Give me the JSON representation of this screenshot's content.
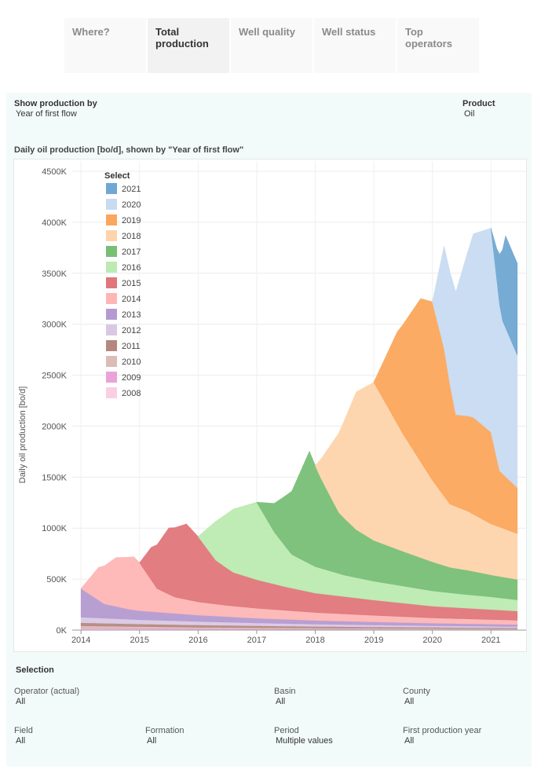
{
  "tabs": [
    {
      "label": "Where?",
      "active": false
    },
    {
      "label": "Total production",
      "active": true
    },
    {
      "label": "Well quality",
      "active": false
    },
    {
      "label": "Well status",
      "active": false
    },
    {
      "label": "Top operators",
      "active": false
    }
  ],
  "controls": {
    "show_by_label": "Show production by",
    "show_by_value": "Year of first flow",
    "product_label": "Product",
    "product_value": "Oil"
  },
  "chart_title": "Daily oil production [bo/d], shown by \"Year of first flow\"",
  "chart_data": {
    "type": "area",
    "stacked": true,
    "ylabel": "Daily oil production [bo/d]",
    "ylim": [
      0,
      4600000
    ],
    "xlim": [
      2013.85,
      2021.6
    ],
    "yticks": [
      {
        "value": 0,
        "label": "0K"
      },
      {
        "value": 500000,
        "label": "500K"
      },
      {
        "value": 1000000,
        "label": "1000K"
      },
      {
        "value": 1500000,
        "label": "1500K"
      },
      {
        "value": 2000000,
        "label": "2000K"
      },
      {
        "value": 2500000,
        "label": "2500K"
      },
      {
        "value": 3000000,
        "label": "3000K"
      },
      {
        "value": 3500000,
        "label": "3500K"
      },
      {
        "value": 4000000,
        "label": "4000K"
      },
      {
        "value": 4500000,
        "label": "4500K"
      }
    ],
    "xticks": [
      {
        "value": 2014,
        "label": "2014"
      },
      {
        "value": 2015,
        "label": "2015"
      },
      {
        "value": 2016,
        "label": "2016"
      },
      {
        "value": 2017,
        "label": "2017"
      },
      {
        "value": 2018,
        "label": "2018"
      },
      {
        "value": 2019,
        "label": "2019"
      },
      {
        "value": 2020,
        "label": "2020"
      },
      {
        "value": 2021,
        "label": "2021"
      }
    ],
    "legend": {
      "title": "Select",
      "position": "top-left"
    },
    "series": [
      {
        "name": "2008",
        "color": "#fbcfe2",
        "points": [
          [
            2014,
            12000
          ],
          [
            2016,
            8000
          ],
          [
            2018,
            6000
          ],
          [
            2020,
            5000
          ],
          [
            2021.45,
            4000
          ]
        ]
      },
      {
        "name": "2009",
        "color": "#eaa3d9",
        "points": [
          [
            2014,
            12000
          ],
          [
            2016,
            8000
          ],
          [
            2018,
            6000
          ],
          [
            2020,
            5000
          ],
          [
            2021.45,
            4000
          ]
        ]
      },
      {
        "name": "2010",
        "color": "#dcbcb6",
        "points": [
          [
            2014,
            18000
          ],
          [
            2016,
            12000
          ],
          [
            2018,
            9000
          ],
          [
            2020,
            7000
          ],
          [
            2021.45,
            6000
          ]
        ]
      },
      {
        "name": "2011",
        "color": "#b4887f",
        "points": [
          [
            2014,
            30000
          ],
          [
            2015,
            25000
          ],
          [
            2016,
            22000
          ],
          [
            2017,
            18000
          ],
          [
            2018,
            15000
          ],
          [
            2019,
            12000
          ],
          [
            2020,
            10000
          ],
          [
            2021.45,
            8000
          ]
        ]
      },
      {
        "name": "2012",
        "color": "#d9c8e4",
        "points": [
          [
            2014,
            55000
          ],
          [
            2015,
            42000
          ],
          [
            2016,
            35000
          ],
          [
            2017,
            28000
          ],
          [
            2018,
            23000
          ],
          [
            2019,
            20000
          ],
          [
            2020,
            16000
          ],
          [
            2021.45,
            13000
          ]
        ]
      },
      {
        "name": "2013",
        "color": "#b49ad0",
        "points": [
          [
            2014,
            280000
          ],
          [
            2014.4,
            140000
          ],
          [
            2014.8,
            100000
          ],
          [
            2015,
            88000
          ],
          [
            2016,
            62000
          ],
          [
            2017,
            46000
          ],
          [
            2018,
            36000
          ],
          [
            2019,
            30000
          ],
          [
            2020,
            25000
          ],
          [
            2021.45,
            20000
          ]
        ]
      },
      {
        "name": "2014",
        "color": "#fdb6b5",
        "points": [
          [
            2014,
            0
          ],
          [
            2014.3,
            320000
          ],
          [
            2014.6,
            480000
          ],
          [
            2014.9,
            520000
          ],
          [
            2015,
            470000
          ],
          [
            2015.3,
            230000
          ],
          [
            2015.6,
            160000
          ],
          [
            2016,
            130000
          ],
          [
            2016.5,
            110000
          ],
          [
            2017,
            98000
          ],
          [
            2018,
            78000
          ],
          [
            2019,
            64000
          ],
          [
            2020,
            52000
          ],
          [
            2021.45,
            42000
          ]
        ]
      },
      {
        "name": "2015",
        "color": "#e0767b",
        "points": [
          [
            2015,
            0
          ],
          [
            2015.2,
            320000
          ],
          [
            2015.5,
            650000
          ],
          [
            2015.8,
            740000
          ],
          [
            2016,
            640000
          ],
          [
            2016.3,
            430000
          ],
          [
            2016.6,
            330000
          ],
          [
            2017,
            280000
          ],
          [
            2017.5,
            230000
          ],
          [
            2018,
            190000
          ],
          [
            2019,
            150000
          ],
          [
            2020,
            115000
          ],
          [
            2021.45,
            90000
          ]
        ]
      },
      {
        "name": "2016",
        "color": "#bceab0",
        "points": [
          [
            2016,
            0
          ],
          [
            2016.3,
            380000
          ],
          [
            2016.6,
            620000
          ],
          [
            2017,
            760000
          ],
          [
            2017.3,
            510000
          ],
          [
            2017.6,
            330000
          ],
          [
            2018,
            260000
          ],
          [
            2018.5,
            210000
          ],
          [
            2019,
            185000
          ],
          [
            2020,
            150000
          ],
          [
            2020.5,
            135000
          ],
          [
            2021,
            125000
          ],
          [
            2021.45,
            110000
          ]
        ]
      },
      {
        "name": "2017",
        "color": "#78bf76",
        "points": [
          [
            2017,
            0
          ],
          [
            2017.3,
            280000
          ],
          [
            2017.6,
            620000
          ],
          [
            2017.9,
            1100000
          ],
          [
            2018.1,
            880000
          ],
          [
            2018.4,
            600000
          ],
          [
            2018.7,
            470000
          ],
          [
            2019,
            400000
          ],
          [
            2019.5,
            340000
          ],
          [
            2020,
            285000
          ],
          [
            2020.3,
            250000
          ],
          [
            2020.6,
            240000
          ],
          [
            2021,
            215000
          ],
          [
            2021.45,
            200000
          ]
        ]
      },
      {
        "name": "2018",
        "color": "#fdd4ab",
        "points": [
          [
            2018,
            0
          ],
          [
            2018.3,
            580000
          ],
          [
            2018.7,
            1350000
          ],
          [
            2019,
            1550000
          ],
          [
            2019.5,
            1150000
          ],
          [
            2020,
            800000
          ],
          [
            2020.3,
            620000
          ],
          [
            2020.6,
            580000
          ],
          [
            2021,
            500000
          ],
          [
            2021.45,
            450000
          ]
        ]
      },
      {
        "name": "2019",
        "color": "#fca65c",
        "points": [
          [
            2019,
            0
          ],
          [
            2019.4,
            900000
          ],
          [
            2019.8,
            1600000
          ],
          [
            2020,
            1750000
          ],
          [
            2020.2,
            1450000
          ],
          [
            2020.4,
            900000
          ],
          [
            2020.7,
            950000
          ],
          [
            2021,
            900000
          ],
          [
            2021.15,
            550000
          ],
          [
            2021.45,
            450000
          ]
        ]
      },
      {
        "name": "2020",
        "color": "#c8dbf1",
        "points": [
          [
            2020,
            0
          ],
          [
            2020.2,
            1000000
          ],
          [
            2020.4,
            1200000
          ],
          [
            2020.7,
            1800000
          ],
          [
            2021,
            2000000
          ],
          [
            2021.2,
            1500000
          ],
          [
            2021.45,
            1300000
          ]
        ]
      },
      {
        "name": "2021",
        "color": "#6fa8d2",
        "points": [
          [
            2021,
            0
          ],
          [
            2021.1,
            300000
          ],
          [
            2021.25,
            900000
          ],
          [
            2021.45,
            900000
          ]
        ]
      }
    ]
  },
  "selection": {
    "heading": "Selection",
    "filters": [
      {
        "label": "Operator (actual)",
        "value": "All"
      },
      {
        "label": "Basin",
        "value": "All"
      },
      {
        "label": "County",
        "value": "All"
      },
      {
        "label": "Field",
        "value": "All"
      },
      {
        "label": "Formation",
        "value": "All"
      },
      {
        "label": "Period",
        "value": "Multiple values"
      },
      {
        "label": "First production year",
        "value": "All"
      }
    ]
  }
}
